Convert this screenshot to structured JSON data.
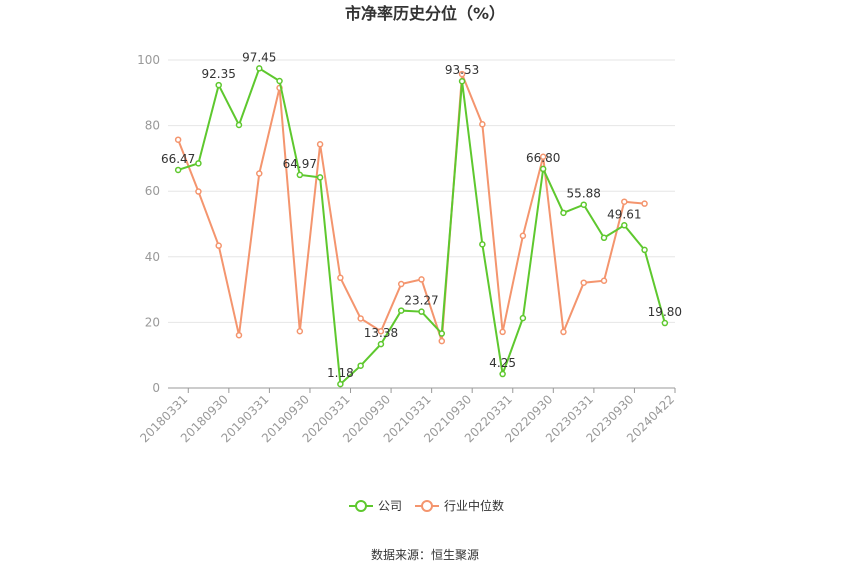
{
  "source_text": "数据来源：恒生聚源",
  "chart_data": {
    "type": "line",
    "title": "市净率历史分位（%）",
    "xlabel": "",
    "ylabel": "",
    "ylim": [
      0,
      100
    ],
    "yticks": [
      0,
      20,
      40,
      60,
      80,
      100
    ],
    "grid": true,
    "legend_position": "bottom",
    "x": [
      "20180331",
      "20180630",
      "20180930",
      "20181231",
      "20190331",
      "20190630",
      "20190930",
      "20191231",
      "20200331",
      "20200630",
      "20200930",
      "20201231",
      "20210331",
      "20210630",
      "20210930",
      "20211231",
      "20220331",
      "20220630",
      "20220930",
      "20221231",
      "20230331",
      "20230630",
      "20230930",
      "20231231",
      "20240422"
    ],
    "x_tick_labels": [
      "20180331",
      "20180930",
      "20190331",
      "20190930",
      "20200331",
      "20200930",
      "20210331",
      "20210930",
      "20220331",
      "20220930",
      "20230331",
      "20230930",
      "20240422"
    ],
    "series": [
      {
        "name": "公司",
        "color": "#5ec82e",
        "values": [
          66.47,
          68.5,
          92.35,
          80.2,
          97.45,
          93.6,
          64.97,
          64.2,
          1.18,
          6.8,
          13.38,
          23.6,
          23.27,
          16.6,
          93.53,
          43.8,
          4.25,
          21.3,
          66.8,
          53.4,
          55.88,
          45.8,
          49.61,
          42.1,
          19.8
        ],
        "labels": {
          "0": "66.47",
          "2": "92.35",
          "4": "97.45",
          "6": "64.97",
          "8": "1.18",
          "10": "13.38",
          "12": "23.27",
          "14": "93.53",
          "16": "4.25",
          "18": "66.80",
          "20": "55.88",
          "22": "49.61",
          "24": "19.80"
        }
      },
      {
        "name": "行业中位数",
        "color": "#f4956e",
        "values": [
          75.7,
          59.9,
          43.4,
          16.1,
          65.4,
          91.5,
          17.3,
          74.3,
          33.6,
          21.2,
          17.3,
          31.7,
          33.1,
          14.3,
          95.7,
          80.4,
          17.1,
          46.4,
          70.5,
          17.1,
          32.1,
          32.7,
          56.8,
          56.2,
          null
        ]
      }
    ]
  }
}
